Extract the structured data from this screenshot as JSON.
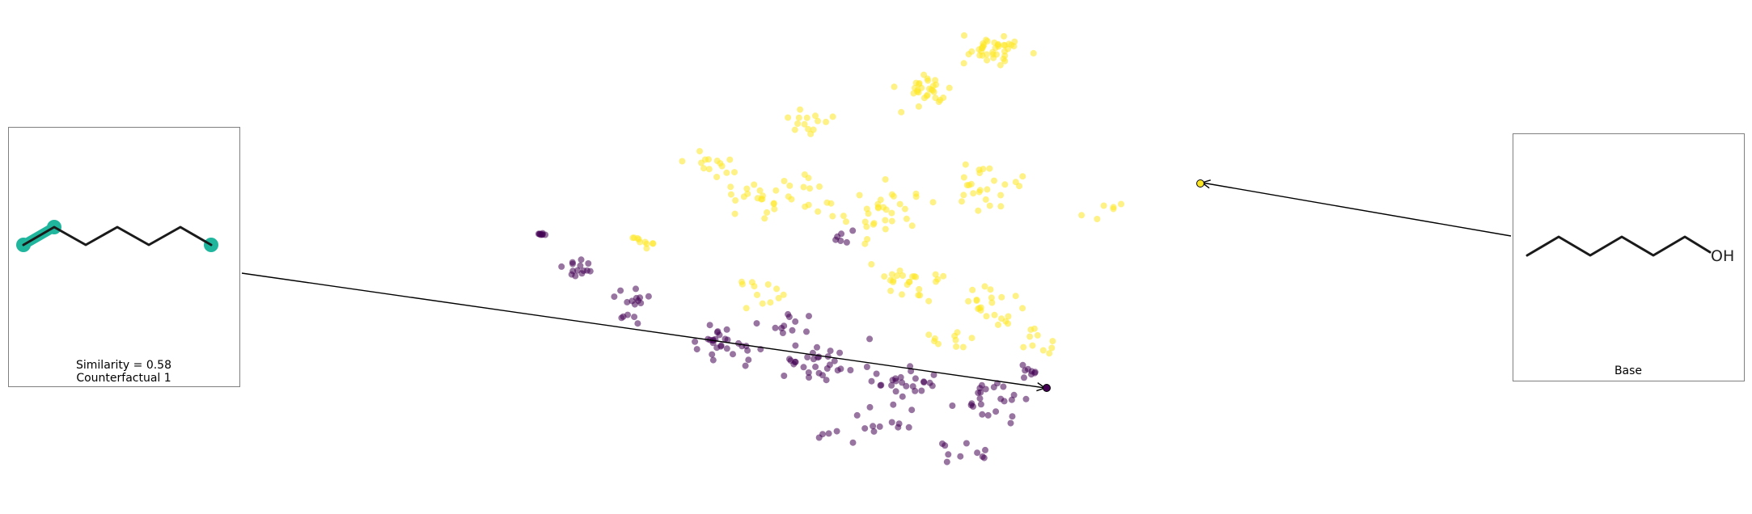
{
  "colors": {
    "class_high": "#fde725",
    "class_low": "#440154",
    "highlight": "#20b69e",
    "box_border": "#808080",
    "bond": "#1a1a1a"
  },
  "counterfactual_panel": {
    "similarity_label": "Similarity = 0.58",
    "title": "Counterfactual 1"
  },
  "base_panel": {
    "title": "Base",
    "atom_label": "OH"
  },
  "scatter": {
    "point_alpha": 0.55,
    "base_point": {
      "class": "high"
    },
    "counterfactual_point": {
      "class": "low"
    }
  }
}
